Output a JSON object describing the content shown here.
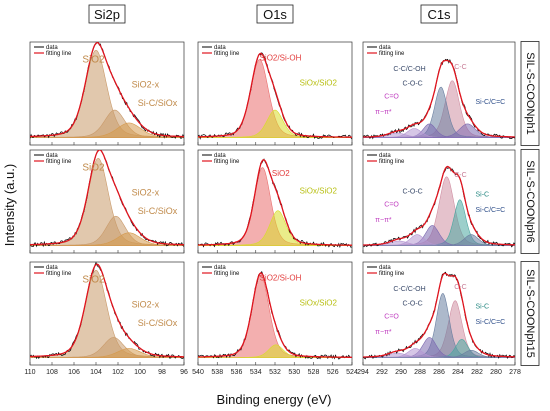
{
  "figure": {
    "xlabel": "Binding energy (eV)",
    "ylabel": "Intensity (a.u.)",
    "columns": [
      "Si2p",
      "O1s",
      "C1s"
    ],
    "rows": [
      "SIL-S-COONph1",
      "SIL-S-COONph6",
      "SIL-S-COONph15"
    ],
    "legend": [
      "data",
      "fitting line"
    ]
  },
  "colors": {
    "data": "#000000",
    "fit": "#e0141e",
    "siox_orange": "#c99a6a",
    "si_c_orange": "#d59a4e",
    "o_red": "#ea6e6e",
    "o_yellow": "#d8dc2a",
    "c_pink": "#d08fa3",
    "c_slate": "#6a7fa0",
    "c_teal": "#4aa7a0",
    "c_purple": "#b597d2",
    "c_purple_dark": "#7c6ab0"
  },
  "chart_data": [
    {
      "type": "line",
      "row": "SIL-S-COONph1",
      "column": "Si2p",
      "xlim": [
        110,
        96
      ],
      "x_ticks": [
        110,
        108,
        106,
        104,
        102,
        100,
        98,
        96
      ],
      "components": [
        {
          "label": "SiO2",
          "center": 104.0,
          "height": 0.95,
          "fwhm": 2.3,
          "color": "#c99a6a"
        },
        {
          "label": "SiO2-x",
          "center": 102.3,
          "height": 0.3,
          "fwhm": 2.2,
          "color": "#c99a6a"
        },
        {
          "label": "Si-C/SiOx",
          "center": 101.0,
          "height": 0.16,
          "fwhm": 2.6,
          "color": "#d59a4e"
        }
      ]
    },
    {
      "type": "line",
      "row": "SIL-S-COONph1",
      "column": "O1s",
      "xlim": [
        540,
        524
      ],
      "x_ticks": [
        540,
        538,
        536,
        534,
        532,
        530,
        528,
        526,
        524
      ],
      "components": [
        {
          "label": "SiO2/Si-OH",
          "center": 533.6,
          "height": 0.85,
          "fwhm": 2.2,
          "color": "#ea6e6e"
        },
        {
          "label": "SiOx/SiO2",
          "center": 532.0,
          "height": 0.3,
          "fwhm": 2.0,
          "color": "#d8dc2a"
        }
      ]
    },
    {
      "type": "line",
      "row": "SIL-S-COONph1",
      "column": "C1s",
      "xlim": [
        294,
        278
      ],
      "x_ticks": [
        294,
        292,
        290,
        288,
        286,
        284,
        282,
        280,
        278
      ],
      "components": [
        {
          "label": "C-C",
          "center": 284.6,
          "height": 0.62,
          "fwhm": 1.8,
          "color": "#d08fa3"
        },
        {
          "label": "C-C/C-OH",
          "center": 285.8,
          "height": 0.55,
          "fwhm": 1.6,
          "color": "#6a7fa0"
        },
        {
          "label": "C-O-C",
          "center": 287.0,
          "height": 0.15,
          "fwhm": 1.6,
          "color": "#7c6ab0"
        },
        {
          "label": "C=O",
          "center": 288.6,
          "height": 0.1,
          "fwhm": 1.8,
          "color": "#b597d2"
        },
        {
          "label": "π−π*",
          "center": 290.4,
          "height": 0.05,
          "fwhm": 2.2,
          "color": "#b597d2"
        },
        {
          "label": "Si-C/C=C",
          "center": 283.0,
          "height": 0.15,
          "fwhm": 2.0,
          "color": "#7c6ab0"
        }
      ]
    },
    {
      "type": "line",
      "row": "SIL-S-COONph6",
      "column": "Si2p",
      "xlim": [
        110,
        96
      ],
      "x_ticks": [
        110,
        108,
        106,
        104,
        102,
        100,
        98,
        96
      ],
      "components": [
        {
          "label": "SiO2",
          "center": 103.8,
          "height": 0.95,
          "fwhm": 2.2,
          "color": "#c99a6a"
        },
        {
          "label": "SiO2-x",
          "center": 102.2,
          "height": 0.32,
          "fwhm": 2.1,
          "color": "#c99a6a"
        },
        {
          "label": "Si-C/SiOx",
          "center": 101.0,
          "height": 0.14,
          "fwhm": 2.5,
          "color": "#d59a4e"
        }
      ]
    },
    {
      "type": "line",
      "row": "SIL-S-COONph6",
      "column": "O1s",
      "xlim": [
        540,
        524
      ],
      "x_ticks": [
        540,
        538,
        536,
        534,
        532,
        530,
        528,
        526,
        524
      ],
      "components": [
        {
          "label": "SiO2",
          "center": 533.3,
          "height": 0.85,
          "fwhm": 2.0,
          "color": "#ea6e6e"
        },
        {
          "label": "SiOx/SiO2",
          "center": 531.7,
          "height": 0.38,
          "fwhm": 2.0,
          "color": "#d8dc2a"
        }
      ]
    },
    {
      "type": "line",
      "row": "SIL-S-COONph6",
      "column": "C1s",
      "xlim": [
        294,
        278
      ],
      "x_ticks": [
        294,
        292,
        290,
        288,
        286,
        284,
        282,
        280,
        278
      ],
      "components": [
        {
          "label": "C-C",
          "center": 285.2,
          "height": 0.75,
          "fwhm": 1.9,
          "color": "#d08fa3"
        },
        {
          "label": "Si-C",
          "center": 283.8,
          "height": 0.5,
          "fwhm": 1.5,
          "color": "#4aa7a0"
        },
        {
          "label": "C-O-C",
          "center": 286.7,
          "height": 0.22,
          "fwhm": 1.7,
          "color": "#7c6ab0"
        },
        {
          "label": "C=O",
          "center": 288.3,
          "height": 0.12,
          "fwhm": 1.8,
          "color": "#b597d2"
        },
        {
          "label": "π−π*",
          "center": 290.2,
          "height": 0.05,
          "fwhm": 2.2,
          "color": "#b597d2"
        },
        {
          "label": "Si-C/C=C",
          "center": 282.6,
          "height": 0.12,
          "fwhm": 1.8,
          "color": "#6a7fa0"
        }
      ]
    },
    {
      "type": "line",
      "row": "SIL-S-COONph15",
      "column": "Si2p",
      "xlim": [
        110,
        96
      ],
      "x_ticks": [
        110,
        108,
        106,
        104,
        102,
        100,
        98,
        96
      ],
      "components": [
        {
          "label": "SiO2",
          "center": 104.0,
          "height": 0.95,
          "fwhm": 2.3,
          "color": "#c99a6a"
        },
        {
          "label": "SiO2-x",
          "center": 102.4,
          "height": 0.22,
          "fwhm": 2.2,
          "color": "#c99a6a"
        },
        {
          "label": "Si-C/SiOx",
          "center": 101.0,
          "height": 0.1,
          "fwhm": 2.5,
          "color": "#d59a4e"
        }
      ]
    },
    {
      "type": "line",
      "row": "SIL-S-COONph15",
      "column": "O1s",
      "xlim": [
        540,
        524
      ],
      "x_ticks": [
        540,
        538,
        536,
        534,
        532,
        530,
        528,
        526,
        524
      ],
      "components": [
        {
          "label": "SiO2/Si-OH",
          "center": 533.5,
          "height": 0.9,
          "fwhm": 2.1,
          "color": "#ea6e6e"
        },
        {
          "label": "SiOx/SiO2",
          "center": 531.9,
          "height": 0.14,
          "fwhm": 1.8,
          "color": "#d8dc2a"
        }
      ]
    },
    {
      "type": "line",
      "row": "SIL-S-COONph15",
      "column": "C1s",
      "xlim": [
        294,
        278
      ],
      "x_ticks": [
        294,
        292,
        290,
        288,
        286,
        284,
        282,
        280,
        278
      ],
      "components": [
        {
          "label": "C-C",
          "center": 284.3,
          "height": 0.62,
          "fwhm": 1.7,
          "color": "#d08fa3"
        },
        {
          "label": "C-C/C-OH",
          "center": 285.6,
          "height": 0.7,
          "fwhm": 1.6,
          "color": "#6a7fa0"
        },
        {
          "label": "Si-C",
          "center": 283.6,
          "height": 0.2,
          "fwhm": 1.5,
          "color": "#4aa7a0"
        },
        {
          "label": "C-O-C",
          "center": 287.0,
          "height": 0.22,
          "fwhm": 1.7,
          "color": "#7c6ab0"
        },
        {
          "label": "C=O",
          "center": 288.5,
          "height": 0.1,
          "fwhm": 1.8,
          "color": "#b597d2"
        },
        {
          "label": "π−π*",
          "center": 290.4,
          "height": 0.05,
          "fwhm": 2.2,
          "color": "#b597d2"
        },
        {
          "label": "Si-C/C=C",
          "center": 282.6,
          "height": 0.08,
          "fwhm": 1.8,
          "color": "#6a7fa0"
        }
      ]
    }
  ]
}
